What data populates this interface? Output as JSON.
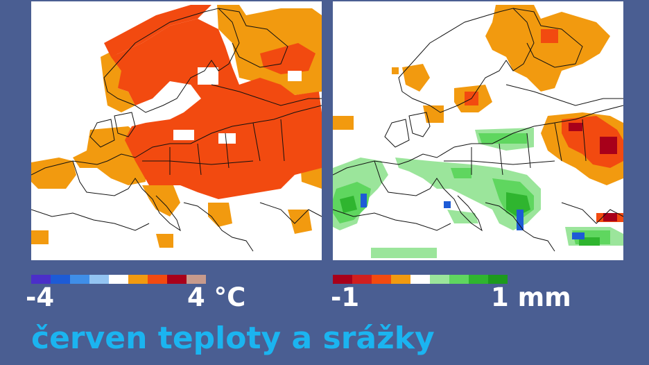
{
  "title": "červen teploty a srážky",
  "maps": {
    "temperature": {
      "legend_min": "-4",
      "legend_max": "4 °C",
      "legend_colors": [
        "#4b2fc9",
        "#1d5bd6",
        "#3f8ee8",
        "#93c4f2",
        "#ffffff",
        "#f29a0f",
        "#f24a10",
        "#a8001a",
        "#c79a8c"
      ]
    },
    "precipitation": {
      "legend_min": "-1",
      "legend_max": "1 mm",
      "legend_colors": [
        "#a8001a",
        "#d01f1f",
        "#f24a10",
        "#f29a0f",
        "#ffffff",
        "#9be59b",
        "#5fd65f",
        "#2fb52f",
        "#1d9a1d"
      ]
    }
  }
}
